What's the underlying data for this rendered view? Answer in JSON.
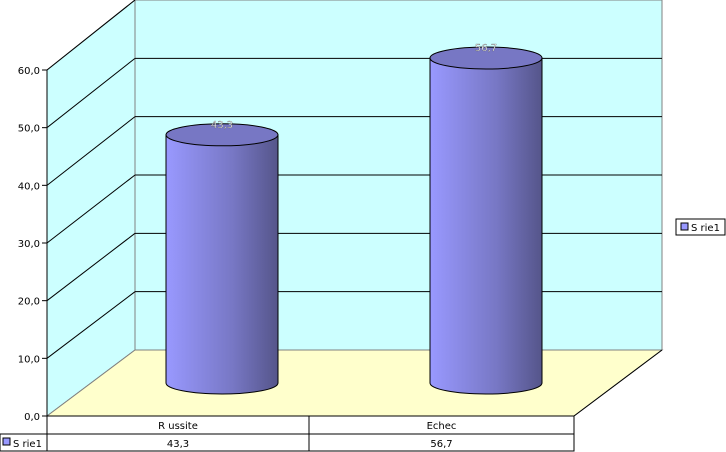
{
  "chart_data": {
    "type": "bar",
    "style": "3d-cylinder",
    "categories": [
      "R ussite",
      "Echec"
    ],
    "series": [
      {
        "name": "S rie1",
        "values": [
          43.3,
          56.7
        ],
        "color": "#9999ff"
      }
    ],
    "value_labels": [
      "43,3",
      "56,7"
    ],
    "ylim": [
      0,
      60
    ],
    "yticks": [
      "0,0",
      "10,0",
      "20,0",
      "30,0",
      "40,0",
      "50,0",
      "60,0"
    ],
    "grid": true,
    "legend": "right",
    "data_table": true,
    "colors": {
      "wall": "#ccffff",
      "floor": "#ffffcc",
      "bar": "#9999ff"
    }
  }
}
